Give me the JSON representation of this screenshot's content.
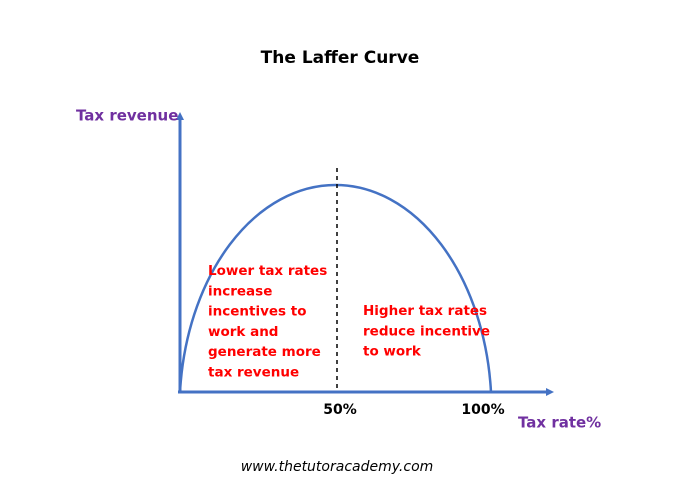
{
  "title": "The Laffer Curve",
  "y_axis_label": "Tax revenue",
  "x_axis_label": "Tax rate%",
  "x_labels": [
    "50%",
    "100%"
  ],
  "left_note": [
    "Lower tax rates",
    "increase",
    "incentives to",
    "work and",
    "generate more",
    "tax revenue"
  ],
  "right_note": [
    "Higher tax rates",
    "reduce incentive",
    "to work"
  ],
  "footer": "www.thetutoracademy.com"
}
